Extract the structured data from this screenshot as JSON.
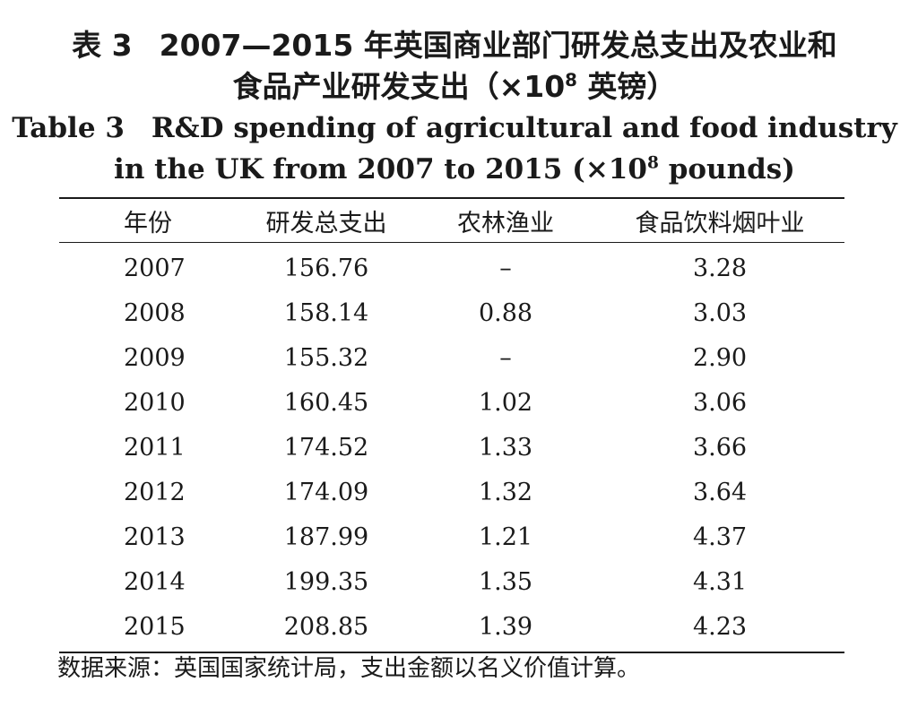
{
  "title": {
    "cn_label": "表 3",
    "cn_line1": "2007—2015 年英国商业部门研发总支出及农业和",
    "cn_line2_pre": "食品产业研发支出（×10",
    "cn_line2_sup": "8",
    "cn_line2_post": " 英镑）",
    "en_label": "Table 3",
    "en_line1": "R&D spending of agricultural and food industry",
    "en_line2_pre": "in the UK from 2007 to 2015 (×10",
    "en_line2_sup": "8",
    "en_line2_post": " pounds)"
  },
  "table": {
    "headers": [
      "年份",
      "研发总支出",
      "农林渔业",
      "食品饮料烟叶业"
    ],
    "rows": [
      [
        "2007",
        "156.76",
        "–",
        "3.28"
      ],
      [
        "2008",
        "158.14",
        "0.88",
        "3.03"
      ],
      [
        "2009",
        "155.32",
        "–",
        "2.90"
      ],
      [
        "2010",
        "160.45",
        "1.02",
        "3.06"
      ],
      [
        "2011",
        "174.52",
        "1.33",
        "3.66"
      ],
      [
        "2012",
        "174.09",
        "1.32",
        "3.64"
      ],
      [
        "2013",
        "187.99",
        "1.21",
        "4.37"
      ],
      [
        "2014",
        "199.35",
        "1.35",
        "4.31"
      ],
      [
        "2015",
        "208.85",
        "1.39",
        "4.23"
      ]
    ]
  },
  "source_note": "数据来源：英国国家统计局，支出金额以名义价值计算。"
}
